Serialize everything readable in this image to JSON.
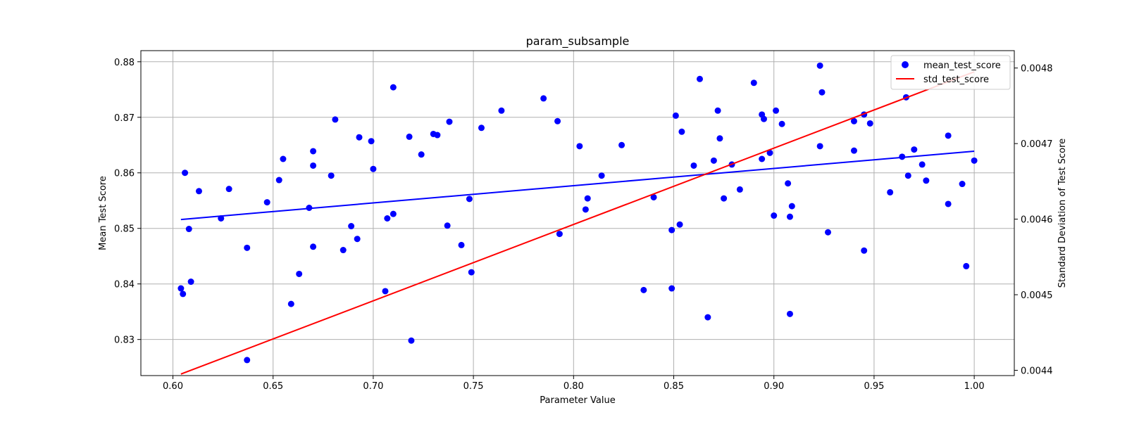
{
  "chart_data": {
    "type": "scatter",
    "title": "param_subsample",
    "xlabel": "Parameter Value",
    "ylabel": "Mean Test Score",
    "y2label": "Standard Deviation of Test Score",
    "xlim": [
      0.584,
      1.02
    ],
    "ylim": [
      0.8235,
      0.882
    ],
    "y2lim": [
      0.004393,
      0.004823
    ],
    "xticks": [
      "0.60",
      "0.65",
      "0.70",
      "0.75",
      "0.80",
      "0.85",
      "0.90",
      "0.95",
      "1.00"
    ],
    "xtick_values": [
      0.6,
      0.65,
      0.7,
      0.75,
      0.8,
      0.85,
      0.9,
      0.95,
      1.0
    ],
    "yticks": [
      "0.83",
      "0.84",
      "0.85",
      "0.86",
      "0.87",
      "0.88"
    ],
    "ytick_values": [
      0.83,
      0.84,
      0.85,
      0.86,
      0.87,
      0.88
    ],
    "y2ticks": [
      "0.0044",
      "0.0045",
      "0.0046",
      "0.0047",
      "0.0048"
    ],
    "y2tick_values": [
      0.0044,
      0.0045,
      0.0046,
      0.0047,
      0.0048
    ],
    "grid": true,
    "legend_position": "top-right",
    "legend": [
      "mean_test_score",
      "std_test_score"
    ],
    "colors": {
      "scatter": "#0000ff",
      "trend": "#0000ff",
      "std_line": "#ff0000"
    },
    "series": [
      {
        "name": "mean_test_score",
        "type": "scatter",
        "points": [
          [
            0.604,
            0.8392
          ],
          [
            0.605,
            0.8382
          ],
          [
            0.606,
            0.86
          ],
          [
            0.608,
            0.8499
          ],
          [
            0.609,
            0.8404
          ],
          [
            0.613,
            0.8567
          ],
          [
            0.624,
            0.8518
          ],
          [
            0.628,
            0.8571
          ],
          [
            0.637,
            0.8465
          ],
          [
            0.637,
            0.8263
          ],
          [
            0.647,
            0.8547
          ],
          [
            0.653,
            0.8587
          ],
          [
            0.655,
            0.8625
          ],
          [
            0.659,
            0.8364
          ],
          [
            0.663,
            0.8418
          ],
          [
            0.668,
            0.8537
          ],
          [
            0.67,
            0.8639
          ],
          [
            0.67,
            0.8613
          ],
          [
            0.67,
            0.8467
          ],
          [
            0.679,
            0.8595
          ],
          [
            0.681,
            0.8696
          ],
          [
            0.685,
            0.8461
          ],
          [
            0.689,
            0.8504
          ],
          [
            0.692,
            0.8481
          ],
          [
            0.693,
            0.8664
          ],
          [
            0.699,
            0.8657
          ],
          [
            0.7,
            0.8607
          ],
          [
            0.706,
            0.8387
          ],
          [
            0.707,
            0.8518
          ],
          [
            0.71,
            0.8754
          ],
          [
            0.71,
            0.8526
          ],
          [
            0.718,
            0.8665
          ],
          [
            0.719,
            0.8298
          ],
          [
            0.724,
            0.8633
          ],
          [
            0.73,
            0.867
          ],
          [
            0.732,
            0.8668
          ],
          [
            0.737,
            0.8505
          ],
          [
            0.738,
            0.8692
          ],
          [
            0.744,
            0.847
          ],
          [
            0.748,
            0.8553
          ],
          [
            0.749,
            0.8421
          ],
          [
            0.754,
            0.8681
          ],
          [
            0.764,
            0.8712
          ],
          [
            0.785,
            0.8734
          ],
          [
            0.792,
            0.8693
          ],
          [
            0.793,
            0.849
          ],
          [
            0.803,
            0.8648
          ],
          [
            0.806,
            0.8534
          ],
          [
            0.807,
            0.8554
          ],
          [
            0.814,
            0.8595
          ],
          [
            0.824,
            0.865
          ],
          [
            0.835,
            0.8389
          ],
          [
            0.84,
            0.8556
          ],
          [
            0.849,
            0.8497
          ],
          [
            0.849,
            0.8392
          ],
          [
            0.851,
            0.8703
          ],
          [
            0.853,
            0.8507
          ],
          [
            0.854,
            0.8674
          ],
          [
            0.86,
            0.8613
          ],
          [
            0.863,
            0.8769
          ],
          [
            0.867,
            0.834
          ],
          [
            0.87,
            0.8622
          ],
          [
            0.872,
            0.8712
          ],
          [
            0.873,
            0.8662
          ],
          [
            0.875,
            0.8554
          ],
          [
            0.879,
            0.8615
          ],
          [
            0.883,
            0.857
          ],
          [
            0.89,
            0.8762
          ],
          [
            0.894,
            0.8625
          ],
          [
            0.894,
            0.8705
          ],
          [
            0.895,
            0.8697
          ],
          [
            0.898,
            0.8636
          ],
          [
            0.9,
            0.8523
          ],
          [
            0.901,
            0.8712
          ],
          [
            0.904,
            0.8688
          ],
          [
            0.907,
            0.8581
          ],
          [
            0.908,
            0.8521
          ],
          [
            0.908,
            0.8346
          ],
          [
            0.909,
            0.854
          ],
          [
            0.923,
            0.8793
          ],
          [
            0.923,
            0.8648
          ],
          [
            0.924,
            0.8745
          ],
          [
            0.927,
            0.8493
          ],
          [
            0.94,
            0.864
          ],
          [
            0.94,
            0.8693
          ],
          [
            0.945,
            0.846
          ],
          [
            0.945,
            0.8705
          ],
          [
            0.948,
            0.8689
          ],
          [
            0.958,
            0.8565
          ],
          [
            0.964,
            0.8629
          ],
          [
            0.966,
            0.8736
          ],
          [
            0.967,
            0.8595
          ],
          [
            0.97,
            0.8642
          ],
          [
            0.974,
            0.8615
          ],
          [
            0.976,
            0.8586
          ],
          [
            0.987,
            0.8544
          ],
          [
            0.987,
            0.8667
          ],
          [
            0.994,
            0.858
          ],
          [
            0.996,
            0.8432
          ],
          [
            1.0,
            0.8622
          ]
        ]
      },
      {
        "name": "trend",
        "type": "line",
        "axis": "left",
        "points": [
          [
            0.604,
            0.8516
          ],
          [
            1.0,
            0.8639
          ]
        ]
      },
      {
        "name": "std_test_score",
        "type": "line",
        "axis": "right",
        "points": [
          [
            0.604,
            0.004395
          ],
          [
            1.0,
            0.004795
          ]
        ]
      }
    ]
  }
}
